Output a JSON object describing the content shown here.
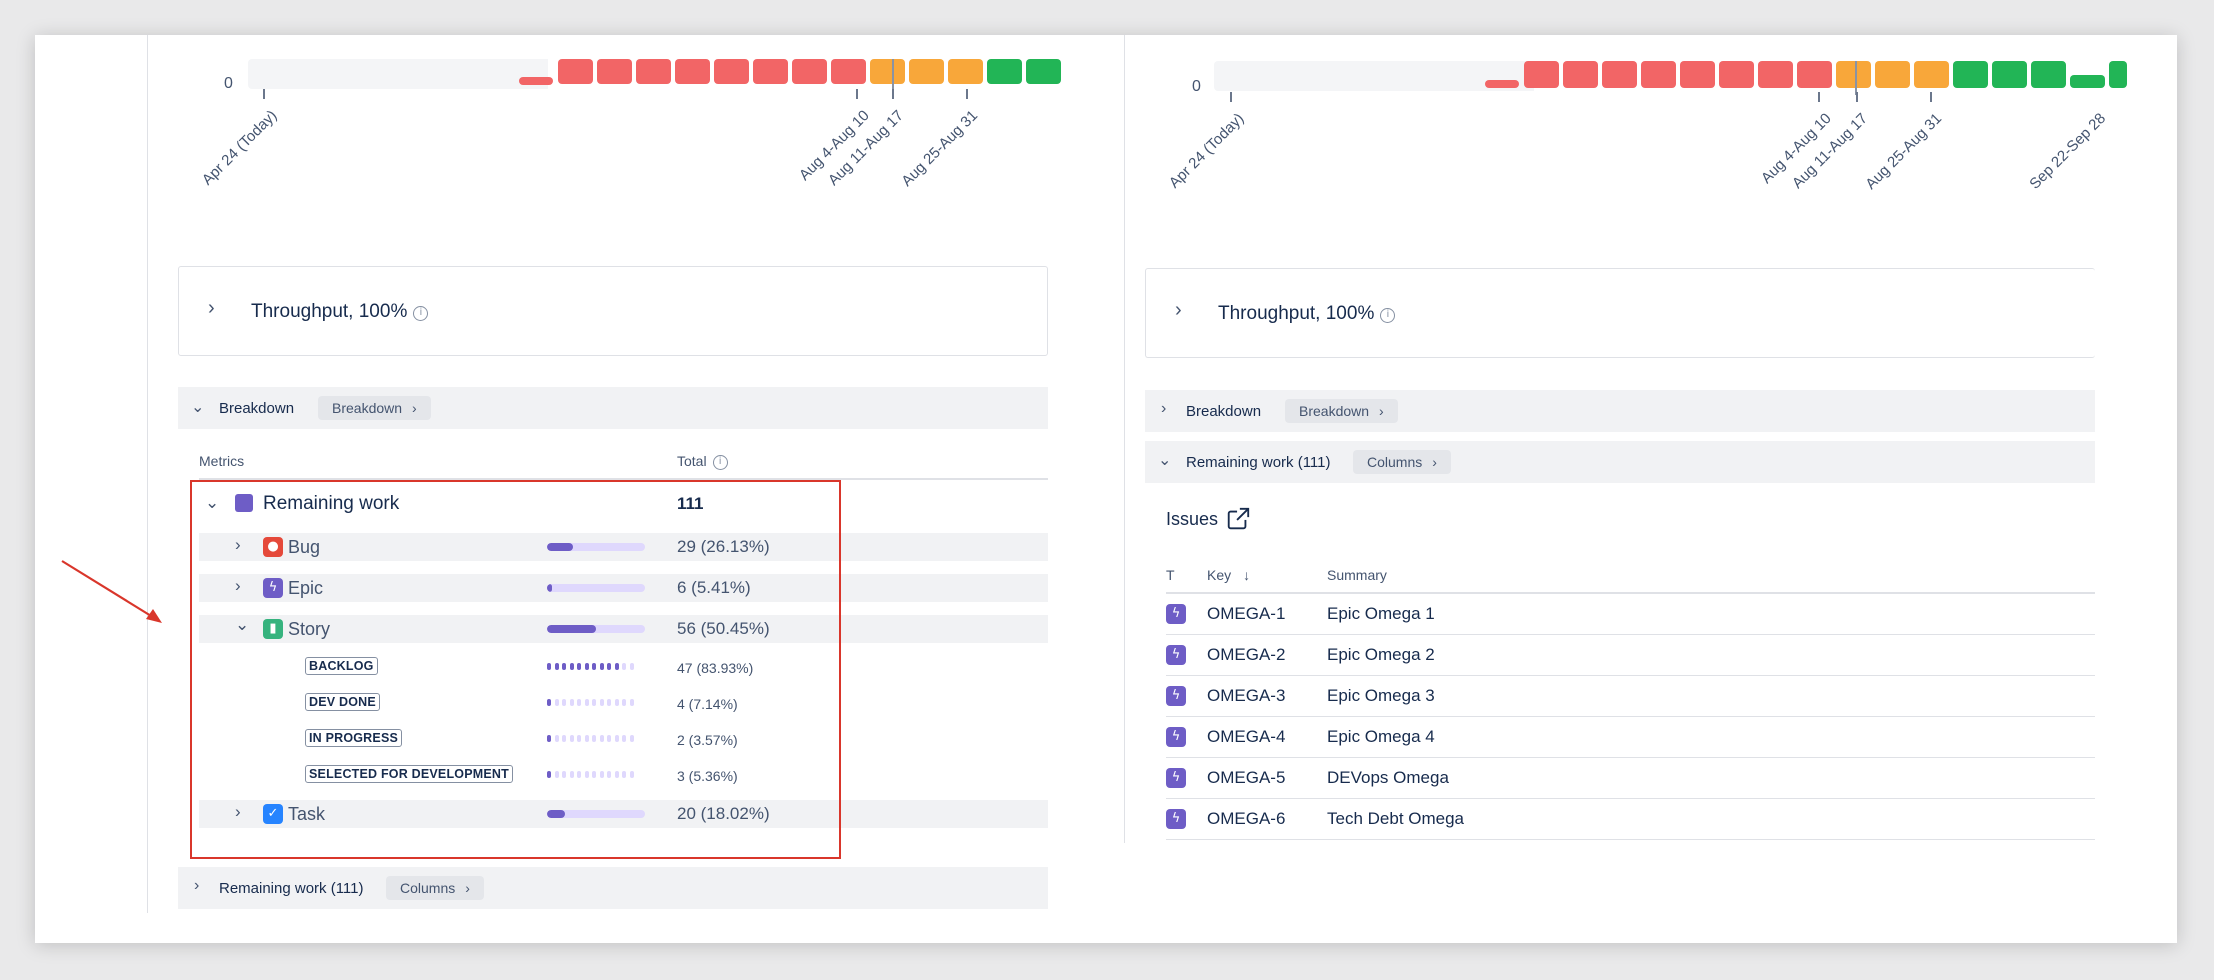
{
  "colors": {
    "red": "#f26566",
    "orange": "#f8a73a",
    "green": "#22b556",
    "accent_purple": "#6e5dc6",
    "highlight_frame": "#d9362b"
  },
  "left_panel": {
    "timeline": {
      "zero_label": "0",
      "dates": [
        "Apr 24 (Today)",
        "Aug 4-Aug 10",
        "Aug 11-Aug 17",
        "Aug 25-Aug 31"
      ],
      "bar_colors": [
        "red",
        "red",
        "red",
        "red",
        "red",
        "red",
        "red",
        "red",
        "orange",
        "orange",
        "orange",
        "green",
        "green"
      ]
    },
    "throughput": {
      "title": "Throughput, 100%",
      "info_icon": "info-icon"
    },
    "breakdown": {
      "title": "Breakdown",
      "pill": "Breakdown"
    },
    "metrics": {
      "col_metrics": "Metrics",
      "col_total": "Total",
      "remaining": {
        "label": "Remaining work",
        "total": "111"
      },
      "rows": [
        {
          "label": "Bug",
          "value": "29 (26.13%)",
          "fraction": 0.2613,
          "icon": "bug-icon"
        },
        {
          "label": "Epic",
          "value": "6 (5.41%)",
          "fraction": 0.0541,
          "icon": "epic-icon"
        },
        {
          "label": "Story",
          "value": "56 (50.45%)",
          "fraction": 0.5045,
          "icon": "story-icon"
        },
        {
          "label": "Task",
          "value": "20 (18.02%)",
          "fraction": 0.1802,
          "icon": "task-icon"
        }
      ],
      "statuses": [
        {
          "label": "BACKLOG",
          "value": "47 (83.93%)",
          "fraction": 0.8393
        },
        {
          "label": "DEV DONE",
          "value": "4 (7.14%)",
          "fraction": 0.0714
        },
        {
          "label": "IN PROGRESS",
          "value": "2 (3.57%)",
          "fraction": 0.0357
        },
        {
          "label": "SELECTED FOR DEVELOPMENT",
          "value": "3 (5.36%)",
          "fraction": 0.0536
        }
      ]
    },
    "remaining_section": {
      "title": "Remaining work (111)",
      "pill": "Columns"
    }
  },
  "right_panel": {
    "timeline": {
      "zero_label": "0",
      "dates": [
        "Apr 24 (Today)",
        "Aug 4-Aug 10",
        "Aug 11-Aug 17",
        "Aug 25-Aug 31",
        "Sep 22-Sep 28"
      ],
      "bar_colors": [
        "red",
        "red",
        "red",
        "red",
        "red",
        "red",
        "red",
        "red",
        "orange",
        "orange",
        "orange",
        "green",
        "green",
        "green",
        "green",
        "green"
      ]
    },
    "throughput": {
      "title": "Throughput, 100%",
      "info_icon": "info-icon"
    },
    "breakdown": {
      "title": "Breakdown",
      "pill": "Breakdown"
    },
    "remaining_section": {
      "title": "Remaining work (111)",
      "pill": "Columns"
    },
    "issues": {
      "title": "Issues",
      "columns": {
        "type": "T",
        "key": "Key",
        "summary": "Summary"
      },
      "rows": [
        {
          "key": "OMEGA-1",
          "summary": "Epic Omega 1"
        },
        {
          "key": "OMEGA-2",
          "summary": "Epic Omega 2"
        },
        {
          "key": "OMEGA-3",
          "summary": "Epic Omega 3"
        },
        {
          "key": "OMEGA-4",
          "summary": "Epic Omega 4"
        },
        {
          "key": "OMEGA-5",
          "summary": "DEVops Omega"
        },
        {
          "key": "OMEGA-6",
          "summary": "Tech Debt Omega"
        }
      ]
    }
  }
}
